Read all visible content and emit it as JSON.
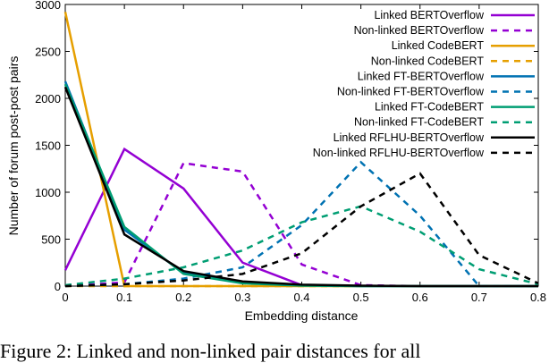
{
  "chart_data": {
    "type": "line",
    "title": "",
    "xlabel": "Embedding distance",
    "ylabel": "Number of forum post-post pairs",
    "xlim": [
      0,
      0.8
    ],
    "ylim": [
      0,
      3000
    ],
    "x": [
      0,
      0.1,
      0.2,
      0.3,
      0.4,
      0.5,
      0.6,
      0.7,
      0.8
    ],
    "xticks": [
      "0",
      "0.1",
      "0.2",
      "0.3",
      "0.4",
      "0.5",
      "0.6",
      "0.7",
      "0.8"
    ],
    "yticks": [
      "0",
      "500",
      "1000",
      "1500",
      "2000",
      "2500",
      "3000"
    ],
    "legend_position": "top-right",
    "grid": false,
    "series": [
      {
        "name": "Linked BERTOverflow",
        "color": "#9400d3",
        "dashed": false,
        "values": [
          170,
          1460,
          1040,
          250,
          10,
          0,
          0,
          0,
          0
        ]
      },
      {
        "name": "Non-linked BERTOverflow",
        "color": "#9400d3",
        "dashed": true,
        "values": [
          0,
          40,
          1310,
          1220,
          230,
          10,
          0,
          0,
          0
        ]
      },
      {
        "name": "Linked CodeBERT",
        "color": "#e69f00",
        "dashed": false,
        "values": [
          2920,
          0,
          0,
          0,
          0,
          0,
          0,
          0,
          0
        ]
      },
      {
        "name": "Non-linked CodeBERT",
        "color": "#e69f00",
        "dashed": true,
        "values": [
          0,
          0,
          0,
          0,
          0,
          0,
          0,
          0,
          0
        ]
      },
      {
        "name": "Linked FT-BERTOverflow",
        "color": "#0072b2",
        "dashed": false,
        "values": [
          2180,
          600,
          140,
          40,
          10,
          0,
          0,
          0,
          0
        ]
      },
      {
        "name": "Non-linked FT-BERTOverflow",
        "color": "#0072b2",
        "dashed": true,
        "values": [
          0,
          20,
          80,
          200,
          650,
          1320,
          750,
          0,
          0
        ]
      },
      {
        "name": "Linked FT-CodeBERT",
        "color": "#009e73",
        "dashed": false,
        "values": [
          2150,
          630,
          130,
          30,
          5,
          0,
          0,
          0,
          0
        ]
      },
      {
        "name": "Non-linked FT-CodeBERT",
        "color": "#009e73",
        "dashed": true,
        "values": [
          10,
          80,
          200,
          380,
          680,
          850,
          580,
          180,
          20
        ]
      },
      {
        "name": "Linked RFLHU-BERTOverflow",
        "color": "#000000",
        "dashed": false,
        "values": [
          2120,
          550,
          160,
          50,
          15,
          5,
          0,
          0,
          0
        ]
      },
      {
        "name": "Non-linked RFLHU-BERTOverflow",
        "color": "#000000",
        "dashed": true,
        "values": [
          0,
          20,
          60,
          130,
          350,
          850,
          1200,
          330,
          30
        ]
      }
    ]
  },
  "caption": "Figure 2: Linked and non-linked pair distances for all"
}
